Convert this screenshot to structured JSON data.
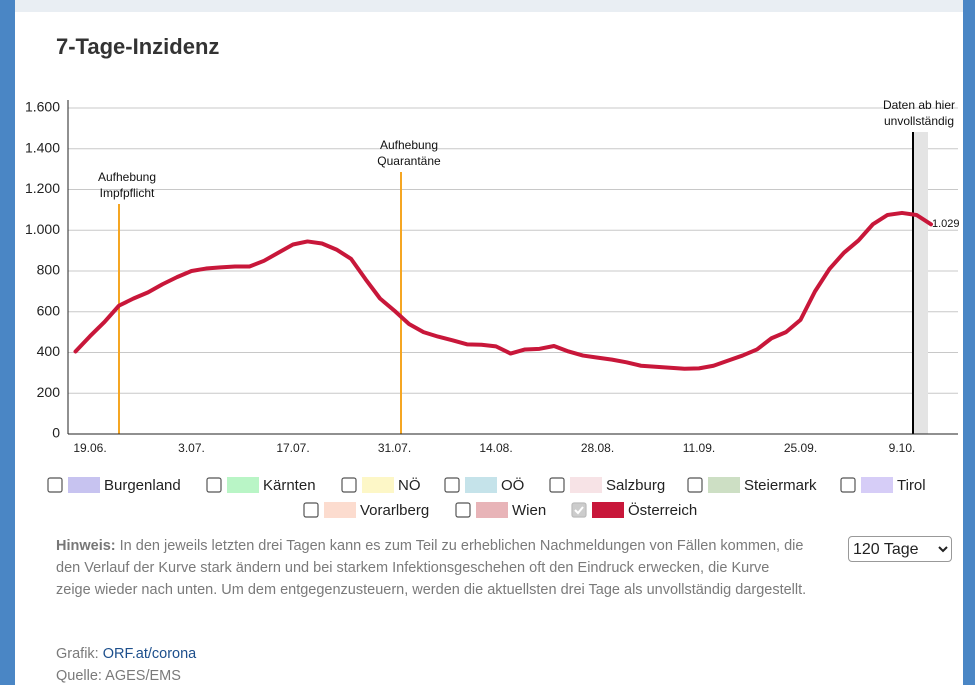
{
  "chart_data": {
    "type": "line",
    "title": "7-Tage-Inzidenz",
    "categories": [
      null,
      "19.06.",
      null,
      null,
      null,
      null,
      null,
      null,
      "3.07.",
      null,
      null,
      null,
      null,
      null,
      null,
      "17.07.",
      null,
      null,
      null,
      null,
      null,
      null,
      "31.07.",
      null,
      null,
      null,
      null,
      null,
      null,
      "14.08.",
      null,
      null,
      null,
      null,
      null,
      null,
      "28.08.",
      null,
      null,
      null,
      null,
      null,
      null,
      "11.09.",
      null,
      null,
      null,
      null,
      null,
      null,
      "25.09.",
      null,
      null,
      null,
      null,
      null,
      null,
      "9.10.",
      null,
      null
    ],
    "series": [
      {
        "name": "Österreich",
        "color": "#c8173a",
        "values": [
          405,
          480,
          550,
          630,
          665,
          695,
          735,
          770,
          800,
          812,
          818,
          822,
          822,
          850,
          890,
          930,
          945,
          935,
          905,
          860,
          760,
          665,
          605,
          540,
          500,
          478,
          460,
          440,
          438,
          430,
          395,
          415,
          418,
          432,
          405,
          385,
          375,
          365,
          352,
          335,
          330,
          325,
          320,
          322,
          335,
          360,
          385,
          415,
          470,
          500,
          560,
          700,
          810,
          890,
          950,
          1030,
          1075,
          1085,
          1075,
          1029
        ],
        "value_labels": [
          null,
          null,
          null,
          null,
          null,
          null,
          null,
          null,
          null,
          null,
          null,
          null,
          null,
          null,
          null,
          null,
          null,
          null,
          null,
          null,
          null,
          null,
          null,
          null,
          null,
          null,
          null,
          null,
          null,
          null,
          null,
          null,
          null,
          null,
          null,
          null,
          null,
          null,
          null,
          null,
          null,
          null,
          null,
          null,
          null,
          null,
          null,
          null,
          null,
          null,
          null,
          null,
          null,
          null,
          null,
          null,
          null,
          null,
          null,
          "1.029"
        ]
      }
    ],
    "ylim": [
      0,
      1600
    ],
    "yticks": [
      0,
      200,
      400,
      600,
      800,
      {
        "value": 1000,
        "label": "1.000"
      },
      {
        "value": 1200,
        "label": "1.200"
      },
      {
        "value": 1400,
        "label": "1.400"
      },
      {
        "value": 1600,
        "label": "1.600"
      }
    ],
    "grid": true,
    "annotations": [
      {
        "lines": [
          "Aufhebung",
          "Impfpflicht"
        ],
        "color": "#f5a623"
      },
      {
        "lines": [
          "Aufhebung",
          "Quarantäne"
        ],
        "color": "#f5a623"
      },
      {
        "lines": [
          "Daten ab hier",
          "unvollständig"
        ],
        "color": "#000000"
      }
    ],
    "legend": [
      {
        "name": "Burgenland",
        "color": "#c7c3f0",
        "checked": false
      },
      {
        "name": "Kärnten",
        "color": "#b9f5c6",
        "checked": false
      },
      {
        "name": "NÖ",
        "color": "#fdf7c7",
        "checked": false
      },
      {
        "name": "OÖ",
        "color": "#c5e3ea",
        "checked": false
      },
      {
        "name": "Salzburg",
        "color": "#f7e3e6",
        "checked": false
      },
      {
        "name": "Steiermark",
        "color": "#cddfc4",
        "checked": false
      },
      {
        "name": "Tirol",
        "color": "#d6cdf7",
        "checked": false
      },
      {
        "name": "Vorarlberg",
        "color": "#fcdccf",
        "checked": false
      },
      {
        "name": "Wien",
        "color": "#e8b4b8",
        "checked": false
      }
    ],
    "series_checked": true
  },
  "hinweis": {
    "label": "Hinweis:",
    "text": "In den jeweils letzten drei Tagen kann es zum Teil zu erheblichen Nachmeldungen von Fällen kommen, die den Verlauf der Kurve stark ändern und bei starkem Infektionsgeschehen oft den Eindruck erwecken, die Kurve zeige wieder nach unten. Um dem entgegenzusteuern, werden die aktuellsten drei Tage als unvollständig dargestellt."
  },
  "range_select": "120 Tage",
  "credits": {
    "grafik_label": "Grafik:",
    "grafik_link": "ORF.at/corona",
    "quelle": "Quelle: AGES/EMS"
  }
}
